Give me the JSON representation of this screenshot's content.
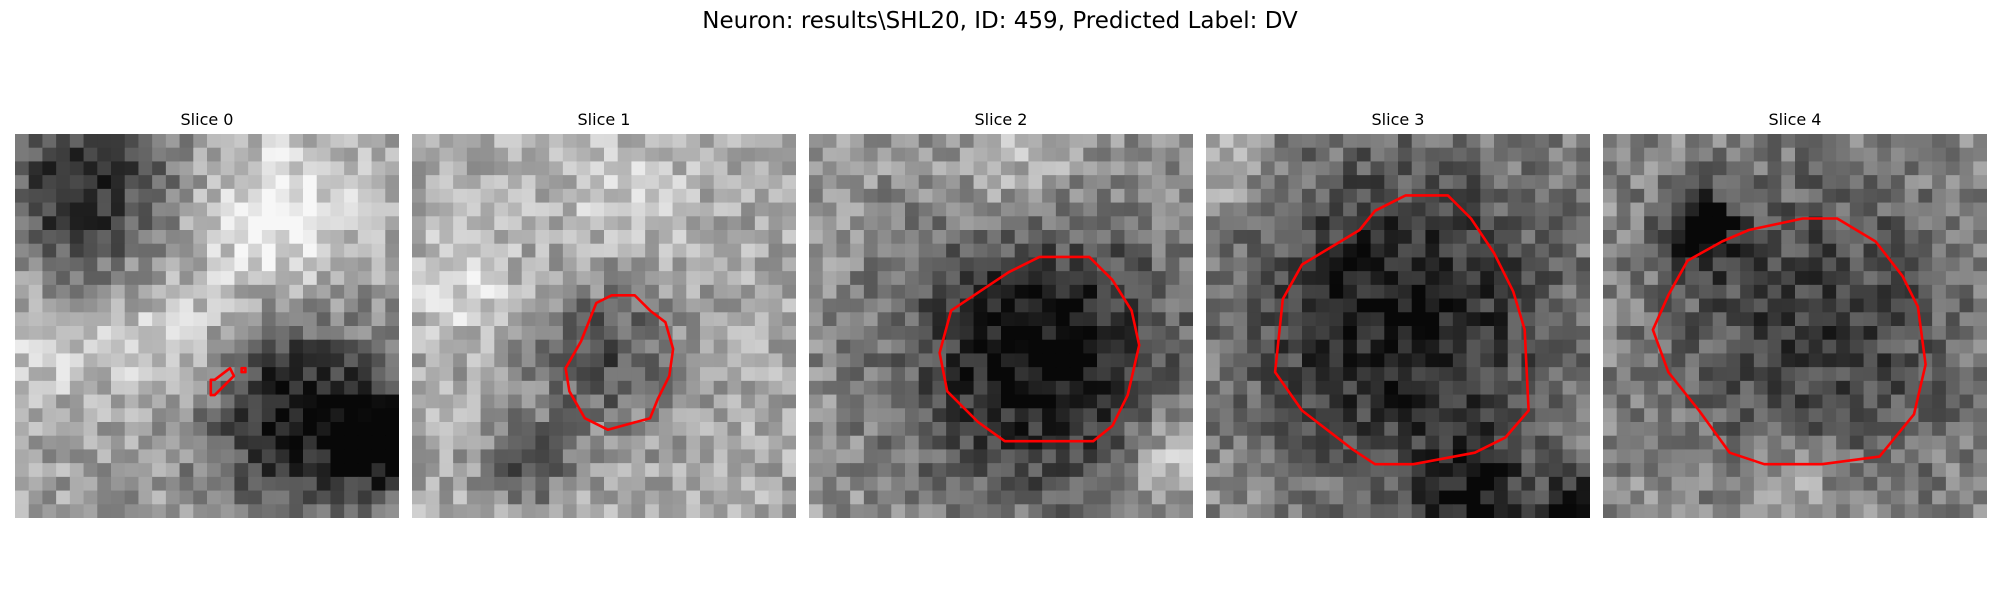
{
  "figure": {
    "title": "Neuron: results\\SHL20, ID: 459, Predicted Label: DV"
  },
  "panels": [
    {
      "title": "Slice 0"
    },
    {
      "title": "Slice 1"
    },
    {
      "title": "Slice 2"
    },
    {
      "title": "Slice 3"
    },
    {
      "title": "Slice 4"
    }
  ],
  "colors": {
    "contour": "#ff0000"
  }
}
